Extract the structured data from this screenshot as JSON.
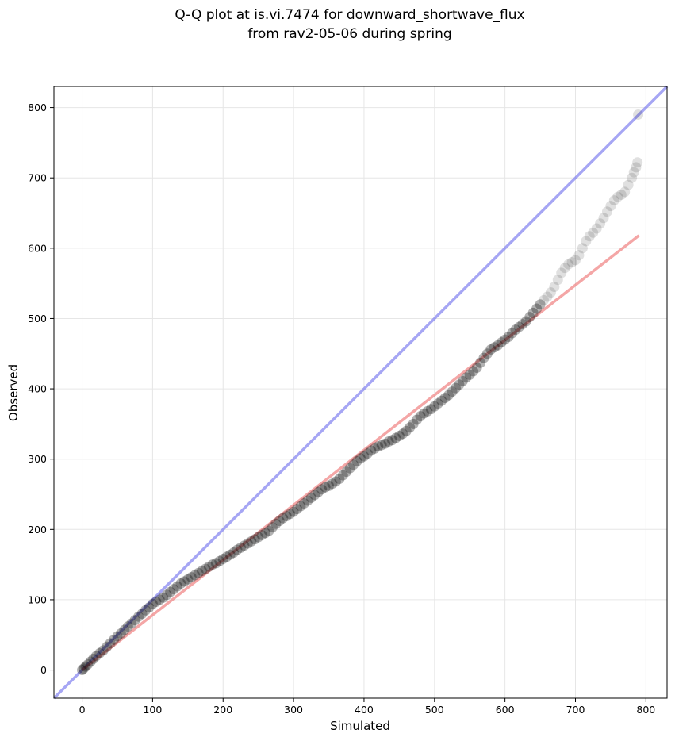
{
  "chart_data": {
    "type": "scatter",
    "title_line1": "Q-Q plot at is.vi.7474 for downward_shortwave_flux",
    "title_line2": "from rav2-05-06 during spring",
    "xlabel": "Simulated",
    "ylabel": "Observed",
    "xlim": [
      -40,
      830
    ],
    "ylim": [
      -40,
      830
    ],
    "x_ticks": [
      0,
      100,
      200,
      300,
      400,
      500,
      600,
      700,
      800
    ],
    "y_ticks": [
      0,
      100,
      200,
      300,
      400,
      500,
      600,
      700,
      800
    ],
    "grid": true,
    "one_to_one_line": {
      "color": "#7777ee",
      "from": [
        -40,
        -40
      ],
      "to": [
        830,
        830
      ]
    },
    "fit_line": {
      "color": "#f08080",
      "from": [
        0,
        0
      ],
      "to": [
        790,
        618
      ]
    },
    "points_color": "#000000",
    "points": [
      [
        0,
        0
      ],
      [
        2,
        2
      ],
      [
        5,
        5
      ],
      [
        8,
        8
      ],
      [
        12,
        12
      ],
      [
        16,
        16
      ],
      [
        20,
        20
      ],
      [
        25,
        24
      ],
      [
        30,
        28
      ],
      [
        35,
        33
      ],
      [
        40,
        38
      ],
      [
        45,
        43
      ],
      [
        50,
        48
      ],
      [
        55,
        52
      ],
      [
        60,
        57
      ],
      [
        65,
        62
      ],
      [
        70,
        66
      ],
      [
        75,
        71
      ],
      [
        80,
        76
      ],
      [
        85,
        80
      ],
      [
        90,
        85
      ],
      [
        95,
        89
      ],
      [
        100,
        94
      ],
      [
        105,
        97
      ],
      [
        110,
        100
      ],
      [
        115,
        103
      ],
      [
        120,
        107
      ],
      [
        125,
        111
      ],
      [
        130,
        115
      ],
      [
        135,
        119
      ],
      [
        140,
        123
      ],
      [
        145,
        126
      ],
      [
        150,
        129
      ],
      [
        155,
        132
      ],
      [
        160,
        135
      ],
      [
        165,
        138
      ],
      [
        170,
        141
      ],
      [
        175,
        144
      ],
      [
        180,
        147
      ],
      [
        185,
        150
      ],
      [
        190,
        152
      ],
      [
        195,
        155
      ],
      [
        200,
        158
      ],
      [
        205,
        161
      ],
      [
        210,
        164
      ],
      [
        215,
        167
      ],
      [
        220,
        171
      ],
      [
        225,
        174
      ],
      [
        230,
        177
      ],
      [
        235,
        180
      ],
      [
        240,
        183
      ],
      [
        245,
        186
      ],
      [
        250,
        189
      ],
      [
        255,
        192
      ],
      [
        260,
        195
      ],
      [
        265,
        198
      ],
      [
        270,
        203
      ],
      [
        275,
        208
      ],
      [
        280,
        212
      ],
      [
        285,
        216
      ],
      [
        290,
        219
      ],
      [
        295,
        222
      ],
      [
        300,
        225
      ],
      [
        305,
        229
      ],
      [
        310,
        233
      ],
      [
        315,
        237
      ],
      [
        320,
        241
      ],
      [
        325,
        245
      ],
      [
        330,
        249
      ],
      [
        335,
        253
      ],
      [
        340,
        257
      ],
      [
        345,
        260
      ],
      [
        350,
        262
      ],
      [
        355,
        265
      ],
      [
        360,
        268
      ],
      [
        365,
        272
      ],
      [
        370,
        277
      ],
      [
        375,
        282
      ],
      [
        380,
        287
      ],
      [
        385,
        292
      ],
      [
        390,
        297
      ],
      [
        395,
        301
      ],
      [
        400,
        304
      ],
      [
        405,
        308
      ],
      [
        410,
        312
      ],
      [
        415,
        315
      ],
      [
        420,
        318
      ],
      [
        425,
        320
      ],
      [
        430,
        322
      ],
      [
        435,
        325
      ],
      [
        440,
        327
      ],
      [
        445,
        330
      ],
      [
        450,
        333
      ],
      [
        455,
        336
      ],
      [
        460,
        340
      ],
      [
        465,
        345
      ],
      [
        470,
        350
      ],
      [
        475,
        356
      ],
      [
        480,
        361
      ],
      [
        485,
        365
      ],
      [
        490,
        368
      ],
      [
        495,
        371
      ],
      [
        500,
        375
      ],
      [
        505,
        379
      ],
      [
        510,
        383
      ],
      [
        515,
        387
      ],
      [
        520,
        391
      ],
      [
        525,
        396
      ],
      [
        530,
        401
      ],
      [
        535,
        406
      ],
      [
        540,
        411
      ],
      [
        545,
        416
      ],
      [
        550,
        420
      ],
      [
        555,
        425
      ],
      [
        560,
        430
      ],
      [
        565,
        437
      ],
      [
        570,
        444
      ],
      [
        575,
        450
      ],
      [
        580,
        456
      ],
      [
        585,
        459
      ],
      [
        590,
        462
      ],
      [
        595,
        466
      ],
      [
        600,
        470
      ],
      [
        605,
        474
      ],
      [
        610,
        479
      ],
      [
        615,
        484
      ],
      [
        620,
        488
      ],
      [
        625,
        492
      ],
      [
        630,
        496
      ],
      [
        635,
        502
      ],
      [
        640,
        508
      ],
      [
        645,
        514
      ],
      [
        650,
        520
      ],
      [
        655,
        526
      ],
      [
        660,
        531
      ],
      [
        665,
        537
      ],
      [
        670,
        545
      ],
      [
        675,
        555
      ],
      [
        680,
        565
      ],
      [
        685,
        572
      ],
      [
        690,
        577
      ],
      [
        695,
        580
      ],
      [
        700,
        583
      ],
      [
        705,
        590
      ],
      [
        710,
        600
      ],
      [
        715,
        610
      ],
      [
        720,
        617
      ],
      [
        725,
        622
      ],
      [
        730,
        628
      ],
      [
        735,
        635
      ],
      [
        740,
        643
      ],
      [
        745,
        652
      ],
      [
        750,
        660
      ],
      [
        755,
        668
      ],
      [
        760,
        673
      ],
      [
        765,
        676
      ],
      [
        770,
        680
      ],
      [
        775,
        690
      ],
      [
        780,
        700
      ],
      [
        783,
        708
      ],
      [
        786,
        715
      ],
      [
        788,
        722
      ],
      [
        789,
        790
      ]
    ]
  }
}
